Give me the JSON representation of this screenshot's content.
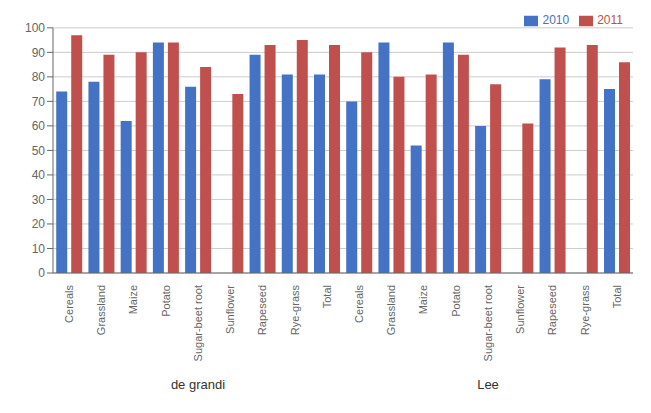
{
  "chart_data": {
    "type": "bar",
    "categories": [
      "Cereals",
      "Grassland",
      "Maize",
      "Potato",
      "Sugar-beet root",
      "Sunflower",
      "Rapeseed",
      "Rye-grass",
      "Total",
      "Cereals",
      "Grassland",
      "Maize",
      "Potato",
      "Sugar-beet root",
      "Sunflower",
      "Rapeseed",
      "Rye-grass",
      "Total"
    ],
    "series": [
      {
        "name": "2010",
        "color": "#4472c4",
        "values": [
          74,
          78,
          62,
          94,
          76,
          null,
          89,
          81,
          81,
          70,
          94,
          52,
          94,
          60,
          null,
          79,
          null,
          75
        ]
      },
      {
        "name": "2011",
        "color": "#c0504d",
        "values": [
          97,
          89,
          90,
          94,
          84,
          73,
          93,
          95,
          93,
          90,
          80,
          81,
          89,
          77,
          61,
          92,
          93,
          86
        ]
      }
    ],
    "annotations": [
      "de grandi",
      "Lee"
    ],
    "ylim": [
      0,
      100
    ],
    "yticks": [
      0,
      10,
      20,
      30,
      40,
      50,
      60,
      70,
      80,
      90,
      100
    ],
    "grid": true,
    "legend": "upper right"
  }
}
